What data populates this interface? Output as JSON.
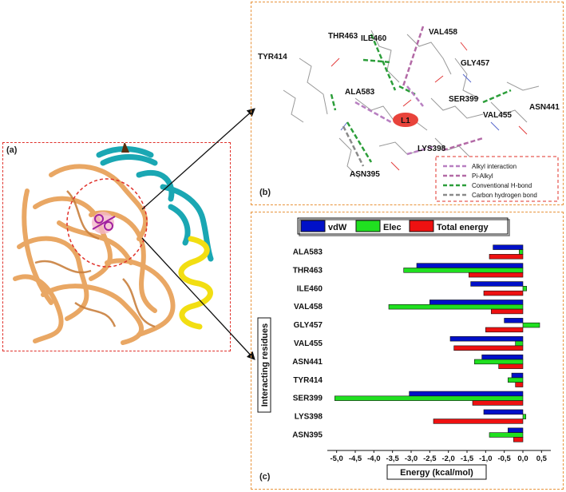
{
  "panel_labels": {
    "a": "(a)",
    "b": "(b)",
    "c": "(c)"
  },
  "panel_b": {
    "residues": [
      "ILE460",
      "THR463",
      "VAL458",
      "TYR414",
      "GLY457",
      "ALA583",
      "SER399",
      "ASN441",
      "VAL455",
      "LYS398",
      "ASN395"
    ],
    "ligand": "L1",
    "interaction_key": [
      {
        "label": "Alkyl interaction",
        "color": "#b87fc1"
      },
      {
        "label": "Pi-Alkyl",
        "color": "#b36aa6"
      },
      {
        "label": "Conventional H-bond",
        "color": "#2c9e3a"
      },
      {
        "label": "Carbon hydrogen bond",
        "color": "#8a8a8a"
      }
    ]
  },
  "colors": {
    "vdw": "#0010c8",
    "elec": "#20e020",
    "total": "#ee1111"
  },
  "chart_data": {
    "type": "bar",
    "orientation": "horizontal",
    "categories": [
      "ALA583",
      "THR463",
      "ILE460",
      "VAL458",
      "GLY457",
      "VAL455",
      "ASN441",
      "TYR414",
      "SER399",
      "LYS398",
      "ASN395"
    ],
    "series": [
      {
        "name": "vdW",
        "values": [
          -0.8,
          -2.85,
          -1.4,
          -2.5,
          -0.5,
          -1.95,
          -1.1,
          -0.3,
          -3.05,
          -1.05,
          -0.4
        ]
      },
      {
        "name": "Elec",
        "values": [
          -0.1,
          -3.2,
          0.1,
          -3.6,
          0.45,
          -0.2,
          -1.3,
          -0.4,
          -5.05,
          0.08,
          -0.9
        ]
      },
      {
        "name": "Total energy",
        "values": [
          -0.9,
          -1.45,
          -1.05,
          -0.85,
          -1.0,
          -1.85,
          -0.65,
          -0.2,
          -1.35,
          -2.4,
          -0.25
        ]
      }
    ],
    "xlabel": "Energy (kcal/mol)",
    "ylabel": "Interacting residues",
    "xticks": [
      "-5,0",
      "-4,5",
      "-4,0",
      "-3,5",
      "-3,0",
      "-2,5",
      "-2,0",
      "-1,5",
      "-1,0",
      "-0,5",
      "0,0",
      "0,5"
    ],
    "xlim": [
      -5.25,
      0.75
    ],
    "legend_position": "top",
    "grid": false
  }
}
